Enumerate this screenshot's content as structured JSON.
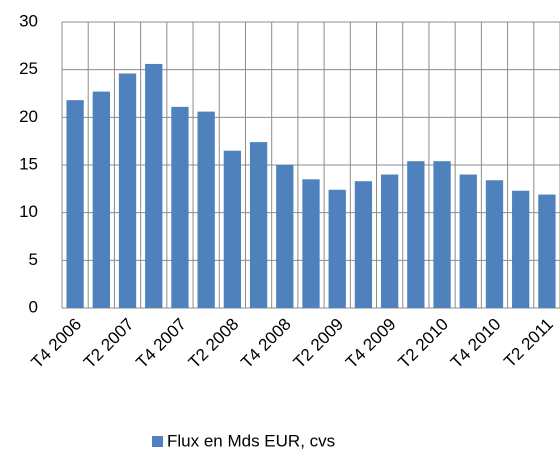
{
  "chart_data": {
    "type": "bar",
    "categories": [
      "T4 2006",
      null,
      "T2 2007",
      null,
      "T4 2007",
      null,
      "T2 2008",
      null,
      "T4 2008",
      null,
      "T2 2009",
      null,
      "T4 2009",
      null,
      "T2 2010",
      null,
      "T4 2010",
      null,
      "T2 2011"
    ],
    "series": [
      {
        "name": "Flux en Mds EUR, cvs",
        "color": "#4f81bd",
        "values": [
          21.8,
          22.7,
          24.6,
          25.6,
          21.1,
          20.6,
          16.5,
          17.4,
          15.0,
          13.5,
          12.4,
          13.3,
          14.0,
          15.4,
          15.4,
          14.0,
          13.4,
          12.3,
          11.9
        ]
      }
    ],
    "ylim": [
      0,
      30
    ],
    "yticks": [
      0,
      5,
      10,
      15,
      20,
      25,
      30
    ],
    "grid": true,
    "legend": "bottom"
  }
}
